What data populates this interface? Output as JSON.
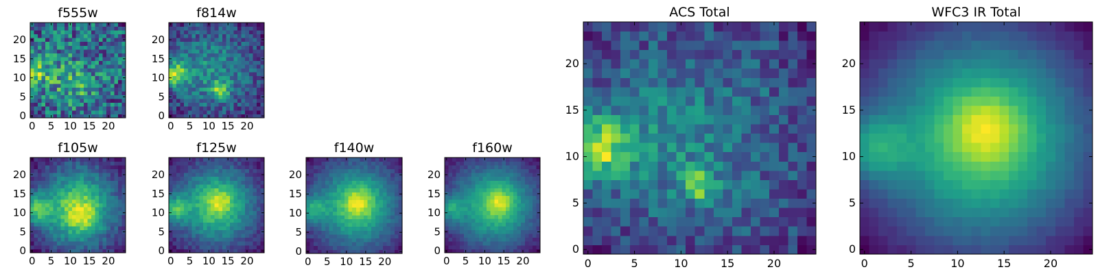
{
  "figure": {
    "colormap": [
      "#440154",
      "#482878",
      "#3e4a89",
      "#31688e",
      "#26828e",
      "#1f9e89",
      "#35b779",
      "#6ece58",
      "#b5de2b",
      "#fde725"
    ],
    "frame_color": "#000000"
  },
  "chart_data": [
    {
      "type": "heatmap",
      "title": "f555w",
      "grid_size": 25,
      "xticks": [
        0,
        5,
        10,
        15,
        20
      ],
      "yticks": [
        0,
        5,
        10,
        15,
        20
      ],
      "model": {
        "seed": 11,
        "noise": 0.55,
        "base": 0.5,
        "components": [
          {
            "cx": 1,
            "cy": 12,
            "sigma": 2.2,
            "amp": 0.45
          },
          {
            "cx": 8,
            "cy": 9,
            "sigma": 5,
            "amp": 0.15
          },
          {
            "cx": 13,
            "cy": 8,
            "sigma": 2.5,
            "amp": 0.12
          }
        ],
        "vignette": 0.1
      }
    },
    {
      "type": "heatmap",
      "title": "f814w",
      "grid_size": 25,
      "xticks": [
        0,
        5,
        10,
        15,
        20
      ],
      "yticks": [
        0,
        5,
        10,
        15,
        20
      ],
      "model": {
        "seed": 23,
        "noise": 0.32,
        "base": 0.4,
        "components": [
          {
            "cx": 1,
            "cy": 11,
            "sigma": 2.3,
            "amp": 0.55
          },
          {
            "cx": 13,
            "cy": 7,
            "sigma": 1.5,
            "amp": 0.45
          },
          {
            "cx": 8,
            "cy": 12,
            "sigma": 6,
            "amp": 0.12
          }
        ],
        "vignette": 0.25
      }
    },
    {
      "type": "heatmap",
      "title": "f105w",
      "grid_size": 25,
      "xticks": [
        0,
        5,
        10,
        15,
        20
      ],
      "yticks": [
        0,
        5,
        10,
        15,
        20
      ],
      "model": {
        "seed": 31,
        "noise": 0.2,
        "base": 0.25,
        "components": [
          {
            "cx": 1,
            "cy": 11,
            "sigma": 2.5,
            "amp": 0.5
          },
          {
            "cx": 12,
            "cy": 11,
            "sigma": 6,
            "amp": 0.5
          },
          {
            "cx": 13,
            "cy": 9,
            "sigma": 2.5,
            "amp": 0.2
          }
        ],
        "vignette": 0.3
      }
    },
    {
      "type": "heatmap",
      "title": "f125w",
      "grid_size": 25,
      "xticks": [
        0,
        5,
        10,
        15,
        20
      ],
      "yticks": [
        0,
        5,
        10,
        15,
        20
      ],
      "model": {
        "seed": 37,
        "noise": 0.18,
        "base": 0.25,
        "components": [
          {
            "cx": 1,
            "cy": 11,
            "sigma": 2.5,
            "amp": 0.5
          },
          {
            "cx": 12,
            "cy": 12,
            "sigma": 6,
            "amp": 0.5
          },
          {
            "cx": 13,
            "cy": 13,
            "sigma": 2.2,
            "amp": 0.25
          }
        ],
        "vignette": 0.32
      }
    },
    {
      "type": "heatmap",
      "title": "f140w",
      "grid_size": 25,
      "xticks": [
        0,
        5,
        10,
        15,
        20
      ],
      "yticks": [
        0,
        5,
        10,
        15,
        20
      ],
      "model": {
        "seed": 41,
        "noise": 0.15,
        "base": 0.22,
        "components": [
          {
            "cx": 1,
            "cy": 11,
            "sigma": 2.5,
            "amp": 0.45
          },
          {
            "cx": 13,
            "cy": 12,
            "sigma": 6,
            "amp": 0.55
          },
          {
            "cx": 13,
            "cy": 13,
            "sigma": 2.2,
            "amp": 0.28
          }
        ],
        "vignette": 0.35
      }
    },
    {
      "type": "heatmap",
      "title": "f160w",
      "grid_size": 25,
      "xticks": [
        0,
        5,
        10,
        15,
        20
      ],
      "yticks": [
        0,
        5,
        10,
        15,
        20
      ],
      "model": {
        "seed": 43,
        "noise": 0.14,
        "base": 0.22,
        "components": [
          {
            "cx": 1,
            "cy": 11,
            "sigma": 2.5,
            "amp": 0.45
          },
          {
            "cx": 13,
            "cy": 12,
            "sigma": 6,
            "amp": 0.55
          },
          {
            "cx": 14,
            "cy": 13,
            "sigma": 2.2,
            "amp": 0.3
          }
        ],
        "vignette": 0.38
      }
    },
    {
      "type": "heatmap",
      "title": "ACS Total",
      "grid_size": 25,
      "xticks": [
        0,
        5,
        10,
        15,
        20
      ],
      "yticks": [
        0,
        5,
        10,
        15,
        20
      ],
      "model": {
        "seed": 53,
        "noise": 0.3,
        "base": 0.45,
        "components": [
          {
            "cx": 1,
            "cy": 11,
            "sigma": 2.2,
            "amp": 0.55
          },
          {
            "cx": 12,
            "cy": 7,
            "sigma": 1.3,
            "amp": 0.4
          },
          {
            "cx": 7,
            "cy": 12,
            "sigma": 5,
            "amp": 0.12
          }
        ],
        "vignette": 0.2
      }
    },
    {
      "type": "heatmap",
      "title": "WFC3 IR Total",
      "grid_size": 25,
      "xticks": [
        0,
        5,
        10,
        15,
        20
      ],
      "yticks": [
        0,
        5,
        10,
        15,
        20
      ],
      "model": {
        "seed": 61,
        "noise": 0.06,
        "base": 0.2,
        "components": [
          {
            "cx": 1,
            "cy": 11,
            "sigma": 2.5,
            "amp": 0.45
          },
          {
            "cx": 13,
            "cy": 12,
            "sigma": 6.5,
            "amp": 0.55
          },
          {
            "cx": 13,
            "cy": 13,
            "sigma": 2.5,
            "amp": 0.28
          }
        ],
        "vignette": 0.42
      }
    }
  ]
}
